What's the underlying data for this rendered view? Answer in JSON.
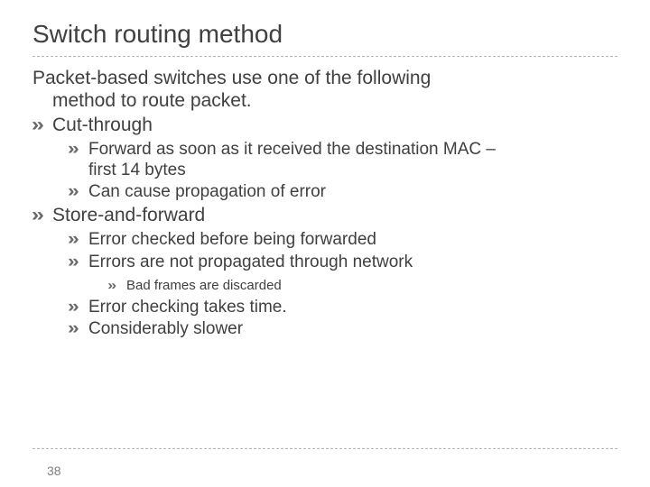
{
  "colors": {
    "text": "#404040",
    "bullet": "#6a6a6a",
    "divider": "#b8b8b8",
    "pagenum": "#808080",
    "background": "#ffffff"
  },
  "typography": {
    "title_fontsize": 28,
    "body_fontsize": 21,
    "l2_fontsize": 19,
    "l3_fontsize": 15,
    "pagenum_fontsize": 14,
    "font_family": "Arial"
  },
  "title": "Switch routing method",
  "intro_line1": "Packet-based switches use one of the following",
  "intro_line2": "method to route packet.",
  "items": {
    "cut_through": {
      "label": "Cut-through",
      "sub1_line1": "Forward as soon as it received the destination MAC –",
      "sub1_line2": "first 14 bytes",
      "sub2": "Can cause propagation of error"
    },
    "store_and_forward": {
      "label": "Store-and-forward",
      "sub1": "Error checked before being forwarded",
      "sub2": "Errors are not propagated through network",
      "sub2_sub1": "Bad frames are discarded",
      "sub3": "Error checking takes time.",
      "sub4": "Considerably slower"
    }
  },
  "page_number": "38"
}
